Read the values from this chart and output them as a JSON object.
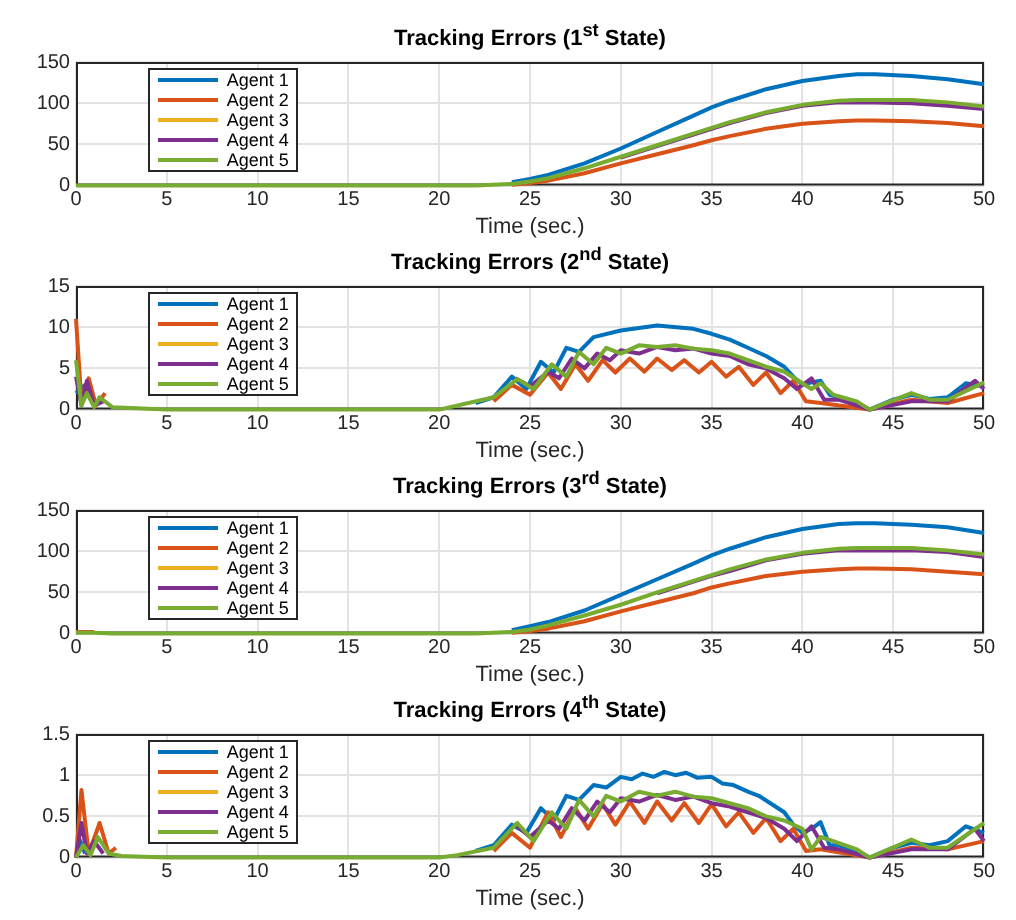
{
  "chart_data": [
    {
      "type": "line",
      "title": "Tracking Errors (1$^{st}$ State)",
      "xlabel": "Time (sec.)",
      "xlim": [
        0,
        50
      ],
      "xticks": [
        0,
        5,
        10,
        15,
        20,
        25,
        30,
        35,
        40,
        45,
        50
      ],
      "ylim": [
        0,
        150
      ],
      "yticks": [
        0,
        50,
        100,
        150
      ],
      "grid": true,
      "legend": "top left",
      "series": [
        {
          "name": "Agent 1",
          "color": "#0072bd",
          "x": [
            24,
            25,
            26,
            28,
            30,
            32,
            34,
            35,
            36,
            38,
            40,
            42,
            43,
            44,
            46,
            48,
            50
          ],
          "values": [
            4,
            8,
            13,
            27,
            45,
            65,
            85,
            95,
            103,
            117,
            127,
            133,
            135,
            135,
            133,
            129,
            123
          ]
        },
        {
          "name": "Agent 2",
          "color": "#d95319",
          "x": [
            24,
            25,
            26,
            28,
            30,
            32,
            34,
            35,
            36,
            38,
            40,
            42,
            43,
            44,
            46,
            48,
            50
          ],
          "values": [
            1,
            3,
            6,
            15,
            27,
            38,
            49,
            55,
            60,
            69,
            75,
            78,
            79,
            79,
            78,
            76,
            72
          ]
        },
        {
          "name": "Agent 3",
          "color": "#edb120"
        },
        {
          "name": "Agent 4",
          "color": "#7e2f8e",
          "x": [
            30,
            32,
            34,
            35,
            36,
            38,
            40,
            42,
            43,
            44,
            46,
            48,
            50
          ],
          "values": [
            34,
            48,
            62,
            69,
            76,
            88,
            97,
            101,
            101,
            101,
            100,
            97,
            93
          ]
        },
        {
          "name": "Agent 5",
          "color": "#77ac30",
          "x": [
            0,
            20,
            22,
            24,
            25,
            26,
            28,
            30,
            32,
            34,
            35,
            36,
            38,
            40,
            42,
            43,
            44,
            46,
            48,
            50
          ],
          "values": [
            0,
            0,
            0,
            2,
            5,
            9,
            21,
            35,
            49,
            63,
            70,
            77,
            89,
            98,
            103,
            104,
            104,
            104,
            101,
            96
          ]
        }
      ]
    },
    {
      "type": "line",
      "title": "Tracking Errors (2$^{nd}$ State)",
      "xlabel": "Time (sec.)",
      "xlim": [
        0,
        50
      ],
      "xticks": [
        0,
        5,
        10,
        15,
        20,
        25,
        30,
        35,
        40,
        45,
        50
      ],
      "ylim": [
        0,
        15
      ],
      "yticks": [
        0,
        5,
        10,
        15
      ],
      "grid": true,
      "legend": "top left",
      "series": [
        {
          "name": "Agent 1",
          "color": "#0072bd",
          "x": [
            0,
            0.5,
            1,
            2,
            3,
            5,
            20,
            22,
            23,
            24,
            24.8,
            25.6,
            26.3,
            27,
            27.7,
            28.5,
            30,
            32,
            34,
            35,
            36,
            37,
            38,
            39,
            39.5,
            40,
            40.5,
            41,
            41.5,
            42,
            43,
            43.7,
            45,
            46,
            47,
            48,
            49,
            50
          ],
          "values": [
            2,
            3,
            0.5,
            null,
            null,
            null,
            null,
            0.8,
            1.5,
            4,
            2.5,
            5.8,
            4.5,
            7.5,
            7,
            8.8,
            9.6,
            10.2,
            9.8,
            9.2,
            8.5,
            7.5,
            6.5,
            5.2,
            4,
            3,
            3.3,
            3.5,
            1.8,
            1.5,
            0.8,
            0,
            1.2,
            1.8,
            1.3,
            1.5,
            3.2,
            2.8
          ]
        },
        {
          "name": "Agent 2",
          "color": "#d95319",
          "x": [
            0,
            0.3,
            0.7,
            1.1,
            1.6,
            2.2,
            3,
            5,
            20,
            23,
            24,
            25,
            26,
            26.7,
            27.5,
            28.2,
            29,
            29.7,
            30.5,
            31.3,
            32,
            32.8,
            33.5,
            34.3,
            35,
            35.8,
            36.5,
            37.3,
            38,
            38.8,
            39.5,
            40.2,
            41,
            43.7,
            46,
            48,
            50
          ],
          "values": [
            11,
            1,
            3.8,
            0.5,
            2,
            null,
            null,
            null,
            null,
            1,
            3,
            1.8,
            4.5,
            2.5,
            5.5,
            3.5,
            6,
            4.5,
            6.2,
            4.6,
            6.2,
            4.8,
            6,
            4.5,
            5.8,
            4,
            5.2,
            3,
            4.5,
            2,
            3.5,
            1,
            0.8,
            0,
            1.2,
            0.8,
            2
          ]
        },
        {
          "name": "Agent 3",
          "color": "#edb120"
        },
        {
          "name": "Agent 4",
          "color": "#7e2f8e",
          "x": [
            0,
            0.3,
            0.6,
            1,
            1.5,
            2,
            5,
            20,
            23,
            24.2,
            25,
            26,
            26.6,
            27.3,
            28,
            28.7,
            29.4,
            30,
            31,
            32,
            33,
            34,
            35,
            36,
            37,
            38,
            39,
            39.7,
            40.5,
            41.2,
            42,
            43.7,
            46,
            48,
            49.5,
            50
          ],
          "values": [
            4,
            0.5,
            3.5,
            0.5,
            1,
            null,
            null,
            null,
            null,
            3.8,
            2.8,
            4.6,
            3.8,
            6.2,
            5,
            6.8,
            6,
            7.2,
            6.8,
            7.6,
            7.2,
            7.4,
            6.8,
            6.5,
            5.5,
            5,
            3.8,
            2.5,
            3.8,
            1.2,
            1.2,
            0,
            1,
            1,
            3.5,
            2.5
          ]
        },
        {
          "name": "Agent 5",
          "color": "#77ac30",
          "x": [
            0,
            0.3,
            0.6,
            1,
            1.3,
            2,
            5,
            20,
            23,
            24.3,
            25.2,
            26.2,
            27,
            27.7,
            28.5,
            29.2,
            30,
            31,
            32,
            33,
            34,
            35,
            36,
            37,
            38,
            39,
            40,
            40.5,
            41,
            41.7,
            43,
            43.7,
            46,
            47,
            48,
            50
          ],
          "values": [
            6,
            0.5,
            2,
            0.3,
            1.5,
            0.3,
            0,
            0,
            1.5,
            3.7,
            2.5,
            5.5,
            4,
            7,
            5.5,
            7.5,
            6.8,
            7.8,
            7.6,
            7.8,
            7.4,
            7.2,
            6.8,
            6,
            5.2,
            4.6,
            3.2,
            2.5,
            3.2,
            1.8,
            1,
            0,
            2,
            1.2,
            1.2,
            3.3
          ]
        }
      ]
    },
    {
      "type": "line",
      "title": "Tracking Errors (3$^{rd}$ State)",
      "xlabel": "Time (sec.)",
      "xlim": [
        0,
        50
      ],
      "xticks": [
        0,
        5,
        10,
        15,
        20,
        25,
        30,
        35,
        40,
        45,
        50
      ],
      "ylim": [
        0,
        150
      ],
      "yticks": [
        0,
        50,
        100,
        150
      ],
      "grid": true,
      "legend": "top left",
      "series": [
        {
          "name": "Agent 1",
          "color": "#0072bd",
          "x": [
            24,
            25,
            26,
            28,
            30,
            32,
            34,
            35,
            36,
            38,
            40,
            42,
            43,
            44,
            46,
            48,
            50
          ],
          "values": [
            4,
            9,
            14,
            28,
            47,
            66,
            85,
            95,
            103,
            117,
            127,
            133,
            134,
            134,
            132,
            129,
            122
          ]
        },
        {
          "name": "Agent 2",
          "color": "#d95319",
          "x": [
            0,
            1,
            2,
            20,
            22,
            24,
            25,
            26,
            28,
            30,
            32,
            34,
            35,
            36,
            38,
            40,
            42,
            43,
            44,
            46,
            48,
            50
          ],
          "values": [
            2,
            2,
            null,
            null,
            null,
            1,
            3,
            6,
            15,
            27,
            38,
            49,
            56,
            61,
            70,
            75,
            78,
            79,
            79,
            78,
            75,
            72
          ]
        },
        {
          "name": "Agent 3",
          "color": "#edb120"
        },
        {
          "name": "Agent 4",
          "color": "#7e2f8e",
          "x": [
            32,
            34,
            35,
            36,
            38,
            40,
            42,
            43,
            44,
            46,
            48,
            50
          ],
          "values": [
            49,
            63,
            70,
            76,
            89,
            97,
            101,
            101,
            101,
            101,
            99,
            93
          ]
        },
        {
          "name": "Agent 5",
          "color": "#77ac30",
          "x": [
            0,
            1,
            2,
            20,
            22,
            24,
            25,
            26,
            28,
            30,
            32,
            34,
            35,
            36,
            38,
            40,
            42,
            43,
            44,
            46,
            48,
            50
          ],
          "values": [
            1,
            1,
            0,
            0,
            0,
            2,
            5,
            10,
            22,
            35,
            50,
            64,
            71,
            78,
            90,
            98,
            103,
            104,
            104,
            104,
            101,
            96
          ]
        }
      ]
    },
    {
      "type": "line",
      "title": "Tracking Errors (4$^{th}$ State)",
      "xlabel": "Time (sec.)",
      "xlim": [
        0,
        50
      ],
      "xticks": [
        0,
        5,
        10,
        15,
        20,
        25,
        30,
        35,
        40,
        45,
        50
      ],
      "ylim": [
        0,
        1.5
      ],
      "yticks": [
        0,
        0.5,
        1,
        1.5
      ],
      "grid": true,
      "legend": "top left",
      "series": [
        {
          "name": "Agent 1",
          "color": "#0072bd",
          "x": [
            0,
            0.2,
            0.5,
            1,
            2,
            3,
            5,
            20,
            21,
            22,
            23,
            24,
            24.8,
            25.6,
            26.3,
            27,
            27.7,
            28.5,
            29.2,
            30,
            30.6,
            31.2,
            31.8,
            32.4,
            33,
            33.6,
            34.2,
            35,
            35.6,
            36.2,
            37,
            37.6,
            38.3,
            39,
            39.5,
            40,
            40.5,
            41,
            41.5,
            42,
            43,
            43.7,
            45,
            46,
            47,
            48,
            49,
            50
          ],
          "values": [
            0,
            0.22,
            0.05,
            null,
            null,
            null,
            null,
            null,
            null,
            0.08,
            0.15,
            0.4,
            0.3,
            0.6,
            0.45,
            0.75,
            0.7,
            0.88,
            0.85,
            0.98,
            0.95,
            1.02,
            0.98,
            1.04,
            1.0,
            1.03,
            0.97,
            0.98,
            0.9,
            0.88,
            0.8,
            0.75,
            0.65,
            0.55,
            0.4,
            0.3,
            0.35,
            0.43,
            0.15,
            0.15,
            0.08,
            0,
            0.12,
            0.18,
            0.15,
            0.2,
            0.38,
            0.3
          ]
        },
        {
          "name": "Agent 2",
          "color": "#d95319",
          "x": [
            0,
            0.3,
            0.7,
            1.3,
            1.8,
            2.2,
            3,
            5,
            20,
            21,
            23,
            24,
            25,
            26,
            26.7,
            27.5,
            28.2,
            29,
            29.7,
            30.5,
            31.3,
            32,
            32.8,
            33.5,
            34.3,
            35,
            35.8,
            36.5,
            37.3,
            38,
            38.8,
            39.5,
            40.2,
            41,
            43.7,
            46,
            48,
            50
          ],
          "values": [
            0,
            0.82,
            0.05,
            0.42,
            0.05,
            0.12,
            null,
            null,
            null,
            null,
            0.08,
            0.3,
            0.12,
            0.55,
            0.25,
            0.6,
            0.35,
            0.65,
            0.4,
            0.68,
            0.42,
            0.68,
            0.45,
            0.66,
            0.42,
            0.65,
            0.38,
            0.55,
            0.3,
            0.48,
            0.2,
            0.35,
            0.08,
            0.1,
            0,
            0.12,
            0.1,
            0.2
          ]
        },
        {
          "name": "Agent 3",
          "color": "#edb120"
        },
        {
          "name": "Agent 4",
          "color": "#7e2f8e",
          "x": [
            0,
            0.3,
            0.6,
            1,
            1.5,
            2,
            5,
            20,
            21,
            23,
            24.2,
            25,
            26,
            26.6,
            27.3,
            28,
            28.7,
            29.4,
            30,
            31,
            32,
            33,
            34,
            35,
            36,
            37,
            38,
            39,
            39.7,
            40.5,
            41.2,
            42,
            43.7,
            46,
            48,
            49.5,
            50
          ],
          "values": [
            0,
            0.42,
            0.05,
            0.2,
            0.05,
            null,
            null,
            null,
            null,
            null,
            0.4,
            0.25,
            0.45,
            0.35,
            0.6,
            0.45,
            0.68,
            0.55,
            0.72,
            0.68,
            0.76,
            0.7,
            0.74,
            0.66,
            0.62,
            0.55,
            0.48,
            0.35,
            0.2,
            0.38,
            0.12,
            0.1,
            0,
            0.1,
            0.1,
            0.35,
            0.2
          ]
        },
        {
          "name": "Agent 5",
          "color": "#77ac30",
          "x": [
            0,
            0.4,
            0.8,
            1.2,
            1.8,
            2.5,
            5,
            20,
            21,
            23,
            24.3,
            25.2,
            26.2,
            27,
            27.7,
            28.5,
            29.2,
            30,
            31,
            32,
            33,
            34,
            35,
            36,
            37,
            38,
            39,
            40,
            40.5,
            41,
            41.7,
            43,
            43.7,
            46,
            47,
            48,
            50
          ],
          "values": [
            0,
            0.15,
            0.03,
            0.25,
            0.05,
            0.02,
            0,
            0,
            0.03,
            0.12,
            0.42,
            0.2,
            0.55,
            0.35,
            0.7,
            0.5,
            0.75,
            0.68,
            0.8,
            0.75,
            0.8,
            0.74,
            0.72,
            0.66,
            0.6,
            0.5,
            0.45,
            0.35,
            0.1,
            0.25,
            0.2,
            0.1,
            0,
            0.22,
            0.12,
            0.12,
            0.42
          ]
        }
      ]
    }
  ]
}
